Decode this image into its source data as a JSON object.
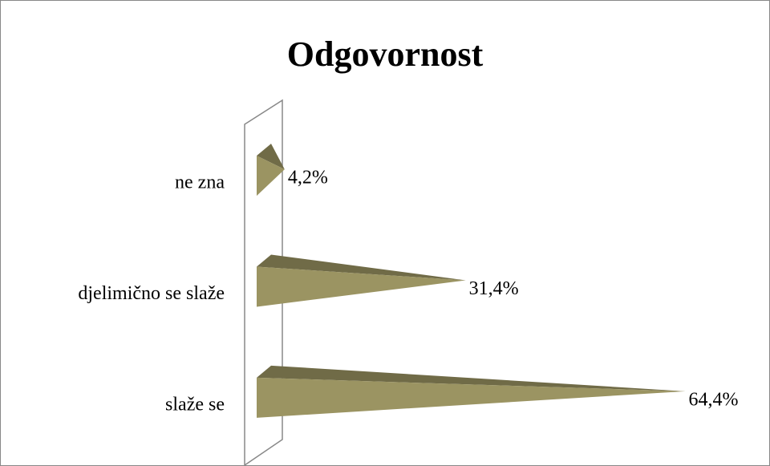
{
  "chart_data": {
    "type": "cone-bar",
    "title": "Odgovornost",
    "categories": [
      "ne zna",
      "djelimično se slaže",
      "slaže se"
    ],
    "values": [
      4.2,
      31.4,
      64.4
    ],
    "value_labels": [
      "4,2%",
      "31,4%",
      "64,4%"
    ],
    "color": "#9b9462"
  }
}
